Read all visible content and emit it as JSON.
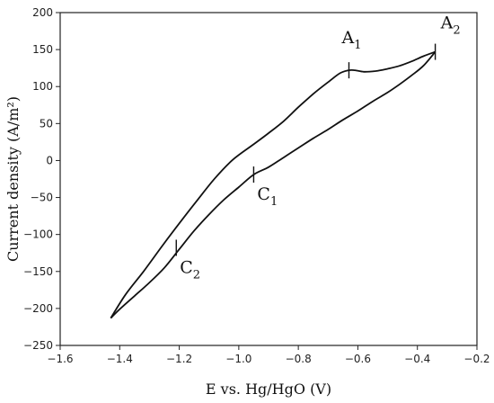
{
  "chart_data": {
    "type": "line",
    "title": "",
    "xlabel": "E vs. Hg/HgO (V)",
    "ylabel": "Current density (A/m²)",
    "xlim": [
      -1.6,
      -0.2
    ],
    "ylim": [
      -250,
      200
    ],
    "xticks": [
      -1.6,
      -1.4,
      -1.2,
      -1.0,
      -0.8,
      -0.6,
      -0.4,
      -0.2
    ],
    "xtick_labels": [
      "−1.6",
      "−1.4",
      "−1.2",
      "−1.0",
      "−0.8",
      "−0.6",
      "−0.4",
      "−0.2"
    ],
    "yticks": [
      -250,
      -200,
      -150,
      -100,
      -50,
      0,
      50,
      100,
      150,
      200
    ],
    "ytick_labels": [
      "−250",
      "−200",
      "−150",
      "−100",
      "−50",
      "0",
      "50",
      "100",
      "150",
      "200"
    ],
    "grid": false,
    "legend": "none",
    "series": [
      {
        "x": [
          -1.43,
          -1.38,
          -1.32,
          -1.26,
          -1.2,
          -1.14,
          -1.08,
          -1.02,
          -0.95,
          -0.9,
          -0.85,
          -0.8,
          -0.75,
          -0.7,
          -0.66,
          -0.63,
          -0.61,
          -0.58,
          -0.54,
          -0.5,
          -0.46,
          -0.42,
          -0.38,
          -0.34
        ],
        "y": [
          -213,
          -181,
          -150,
          -117,
          -85,
          -54,
          -24,
          1,
          22,
          37,
          53,
          72,
          90,
          106,
          118,
          122,
          122,
          120,
          121,
          124,
          128,
          134,
          141,
          147
        ]
      },
      {
        "x": [
          -0.34,
          -0.38,
          -0.42,
          -0.46,
          -0.5,
          -0.55,
          -0.6,
          -0.65,
          -0.7,
          -0.75,
          -0.8,
          -0.85,
          -0.9,
          -0.95,
          -1.0,
          -1.05,
          -1.1,
          -1.15,
          -1.2,
          -1.25,
          -1.3,
          -1.35,
          -1.4,
          -1.43
        ],
        "y": [
          147,
          128,
          115,
          103,
          92,
          80,
          67,
          55,
          42,
          30,
          17,
          4,
          -9,
          -19,
          -36,
          -53,
          -73,
          -95,
          -120,
          -145,
          -165,
          -183,
          -201,
          -213
        ]
      }
    ],
    "markers": [
      {
        "label": "A",
        "subscript": "1",
        "x": -0.63,
        "y": 122
      },
      {
        "label": "A",
        "subscript": "2",
        "x": -0.34,
        "y": 147
      },
      {
        "label": "C",
        "subscript": "1",
        "x": -0.95,
        "y": -19
      },
      {
        "label": "C",
        "subscript": "2",
        "x": -1.21,
        "y": -118
      }
    ]
  }
}
